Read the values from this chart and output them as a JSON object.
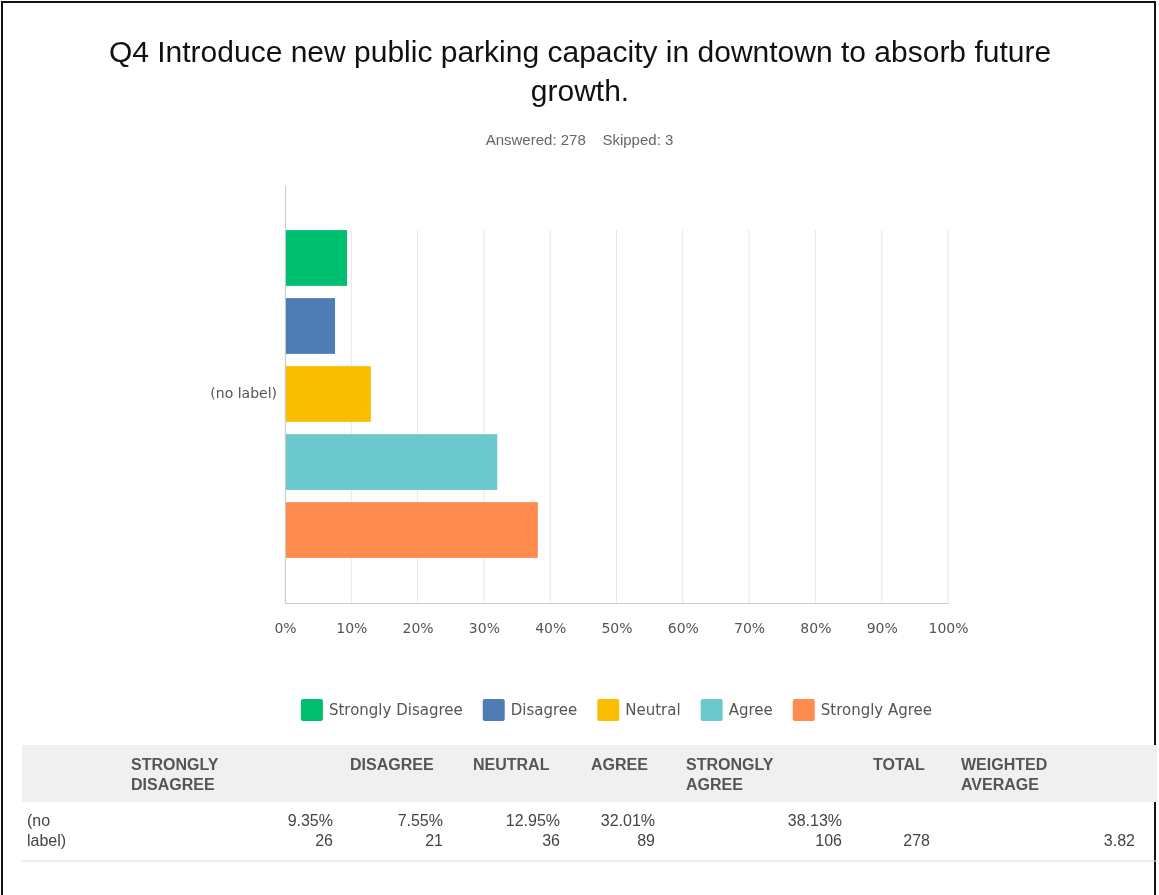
{
  "chart_data": {
    "type": "bar",
    "orientation": "horizontal",
    "title": "Q4 Introduce new public parking capacity in downtown to absorb future growth.",
    "subtitle": "Answered: 278    Skipped: 3",
    "categories": [
      "(no label)"
    ],
    "series": [
      {
        "name": "Strongly Disagree",
        "color": "#00bf6f",
        "values": [
          9.35
        ]
      },
      {
        "name": "Disagree",
        "color": "#507cb6",
        "values": [
          7.55
        ]
      },
      {
        "name": "Neutral",
        "color": "#f9be00",
        "values": [
          12.95
        ]
      },
      {
        "name": "Agree",
        "color": "#6bc8cd",
        "values": [
          32.01
        ]
      },
      {
        "name": "Strongly Agree",
        "color": "#ff8b4f",
        "values": [
          38.13
        ]
      }
    ],
    "xlim": [
      0,
      100
    ],
    "xticks": [
      {
        "value": 0,
        "label": "0%"
      },
      {
        "value": 10,
        "label": "10%"
      },
      {
        "value": 20,
        "label": "20%"
      },
      {
        "value": 30,
        "label": "30%"
      },
      {
        "value": 40,
        "label": "40%"
      },
      {
        "value": 50,
        "label": "50%"
      },
      {
        "value": 60,
        "label": "60%"
      },
      {
        "value": 70,
        "label": "70%"
      },
      {
        "value": 80,
        "label": "80%"
      },
      {
        "value": 90,
        "label": "90%"
      },
      {
        "value": 100,
        "label": "100%"
      }
    ],
    "grid": "x",
    "legend": "bottom",
    "annotations": [
      "STRONGLY DISAGREE",
      "DISAGREE",
      "NEUTRAL",
      "AGREE",
      "STRONGLY AGREE",
      "TOTAL",
      "WEIGHTED AVERAGE",
      "9.35%",
      "7.55%",
      "12.95%",
      "32.01%",
      "38.13%",
      "26",
      "21",
      "36",
      "89",
      "106",
      "278",
      "3.82"
    ]
  }
}
